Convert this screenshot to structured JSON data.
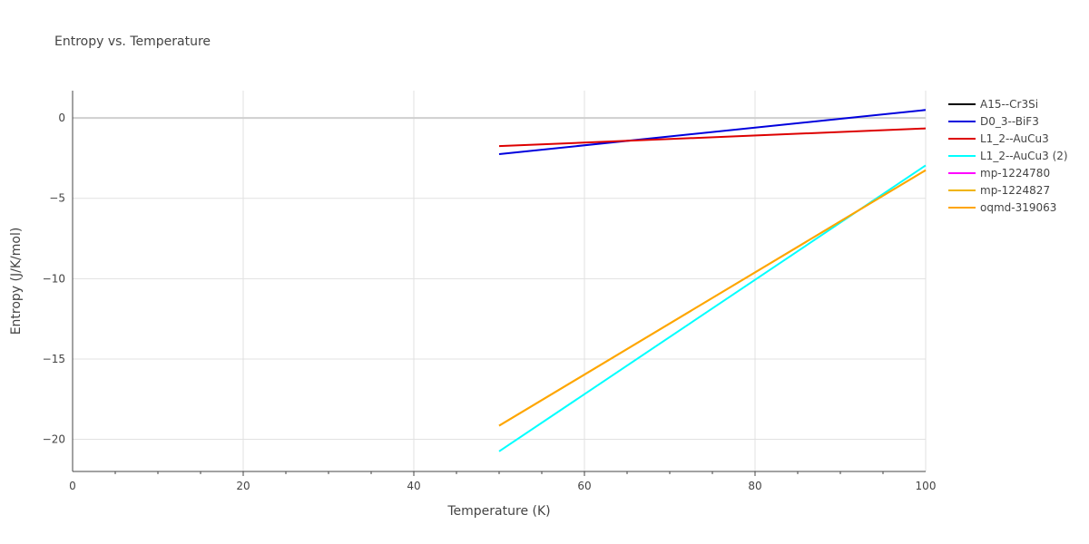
{
  "chart_data": {
    "type": "line",
    "title": "Entropy vs. Temperature",
    "xlabel": "Temperature (K)",
    "ylabel": "Entropy (J/K/mol)",
    "xlim": [
      0,
      100
    ],
    "ylim": [
      -22,
      1.7
    ],
    "xticks": [
      0,
      20,
      40,
      60,
      80,
      100
    ],
    "yticks": [
      0,
      -5,
      -10,
      -15,
      -20
    ],
    "legend_position": "top-right",
    "grid": true,
    "series": [
      {
        "name": "A15--Cr3Si",
        "color": "#000000",
        "x": [],
        "y": []
      },
      {
        "name": "D0_3--BiF3",
        "color": "#0000dd",
        "x": [
          50,
          100
        ],
        "y": [
          -2.25,
          0.5
        ]
      },
      {
        "name": "L1_2--AuCu3",
        "color": "#dd0000",
        "x": [
          50,
          100
        ],
        "y": [
          -1.75,
          -0.65
        ]
      },
      {
        "name": "L1_2--AuCu3 (2)",
        "color": "#00ffff",
        "x": [
          50,
          100
        ],
        "y": [
          -20.75,
          -2.95
        ]
      },
      {
        "name": "mp-1224780",
        "color": "#ff00ff",
        "x": [],
        "y": []
      },
      {
        "name": "mp-1224827",
        "color": "#f0b400",
        "x": [
          50,
          100
        ],
        "y": [
          -19.15,
          -3.25
        ]
      },
      {
        "name": "oqmd-319063",
        "color": "#ffa500",
        "x": [
          50,
          100
        ],
        "y": [
          -19.15,
          -3.25
        ]
      }
    ]
  }
}
